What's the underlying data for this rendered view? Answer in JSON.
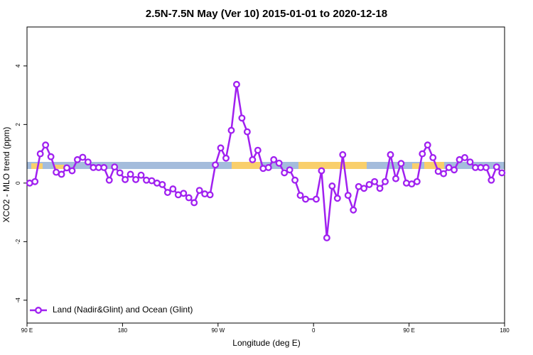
{
  "chart_data": {
    "type": "line",
    "title": "2.5N-7.5N May (Ver 10)   2015-01-01 to 2020-12-18",
    "xlabel": "Longitude (deg E)",
    "ylabel": "XCO2 - MLO trend (ppm)",
    "x": [
      92.5,
      97.5,
      102.5,
      107.5,
      112.5,
      117.5,
      122.5,
      127.5,
      132.5,
      137.5,
      142.5,
      147.5,
      152.5,
      157.5,
      162.5,
      167.5,
      172.5,
      177.5,
      182.5,
      187.5,
      192.5,
      197.5,
      202.5,
      207.5,
      212.5,
      217.5,
      222.5,
      227.5,
      232.5,
      237.5,
      242.5,
      247.5,
      252.5,
      257.5,
      262.5,
      267.5,
      272.5,
      277.5,
      282.5,
      287.5,
      292.5,
      297.5,
      302.5,
      307.5,
      312.5,
      317.5,
      322.5,
      327.5,
      332.5,
      337.5,
      342.5,
      347.5,
      352.5,
      362.5,
      367.5,
      372.5,
      377.5,
      382.5,
      387.5,
      392.5,
      397.5,
      402.5,
      407.5,
      412.5,
      417.5,
      422.5,
      427.5,
      432.5,
      437.5,
      442.5,
      447.5,
      452.5,
      457.5,
      462.5,
      467.5,
      472.5,
      477.5,
      482.5,
      487.5,
      492.5,
      497.5,
      502.5,
      507.5,
      512.5,
      517.5,
      522.5,
      527.5,
      532.5,
      537.5
    ],
    "series": [
      {
        "name": "Land (Nadir&Glint) and Ocean (Glint)",
        "color": "#a020f0",
        "values": [
          0,
          0.05,
          1.0,
          1.3,
          0.9,
          0.37,
          0.3,
          0.52,
          0.42,
          0.8,
          0.88,
          0.72,
          0.53,
          0.53,
          0.53,
          0.1,
          0.55,
          0.35,
          0.12,
          0.3,
          0.12,
          0.27,
          0.1,
          0.08,
          0,
          -0.05,
          -0.32,
          -0.2,
          -0.4,
          -0.35,
          -0.5,
          -0.67,
          -0.25,
          -0.37,
          -0.4,
          0.62,
          1.2,
          0.85,
          1.8,
          3.37,
          2.22,
          1.75,
          0.8,
          1.12,
          0.5,
          0.53,
          0.8,
          0.68,
          0.35,
          0.45,
          0.1,
          -0.42,
          -0.55,
          -0.55,
          0.42,
          -1.87,
          -0.1,
          -0.52,
          0.97,
          -0.42,
          -0.92,
          -0.12,
          -0.18,
          -0.05,
          0.05,
          -0.18,
          0.05,
          0.97,
          0.15,
          0.67,
          0,
          -0.03,
          0.05,
          1.0,
          1.3,
          0.87,
          0.4,
          0.32,
          0.53,
          0.45,
          0.8,
          0.87,
          0.72,
          0.53,
          0.53,
          0.53,
          0.1,
          0.55,
          0.35
        ]
      }
    ],
    "xlim": [
      90,
      540
    ],
    "xticks": [
      {
        "value": 90,
        "label": "90 E"
      },
      180,
      {
        "value": 270,
        "label": "90 W"
      },
      {
        "value": 360,
        "label": "0"
      },
      {
        "value": 450,
        "label": "90 E"
      },
      {
        "value": 540,
        "label": "180"
      }
    ],
    "ylim": [
      -4.78,
      5.33
    ],
    "yticks": [
      -4,
      -2,
      0,
      2,
      4
    ],
    "legend": "bottomleft"
  }
}
